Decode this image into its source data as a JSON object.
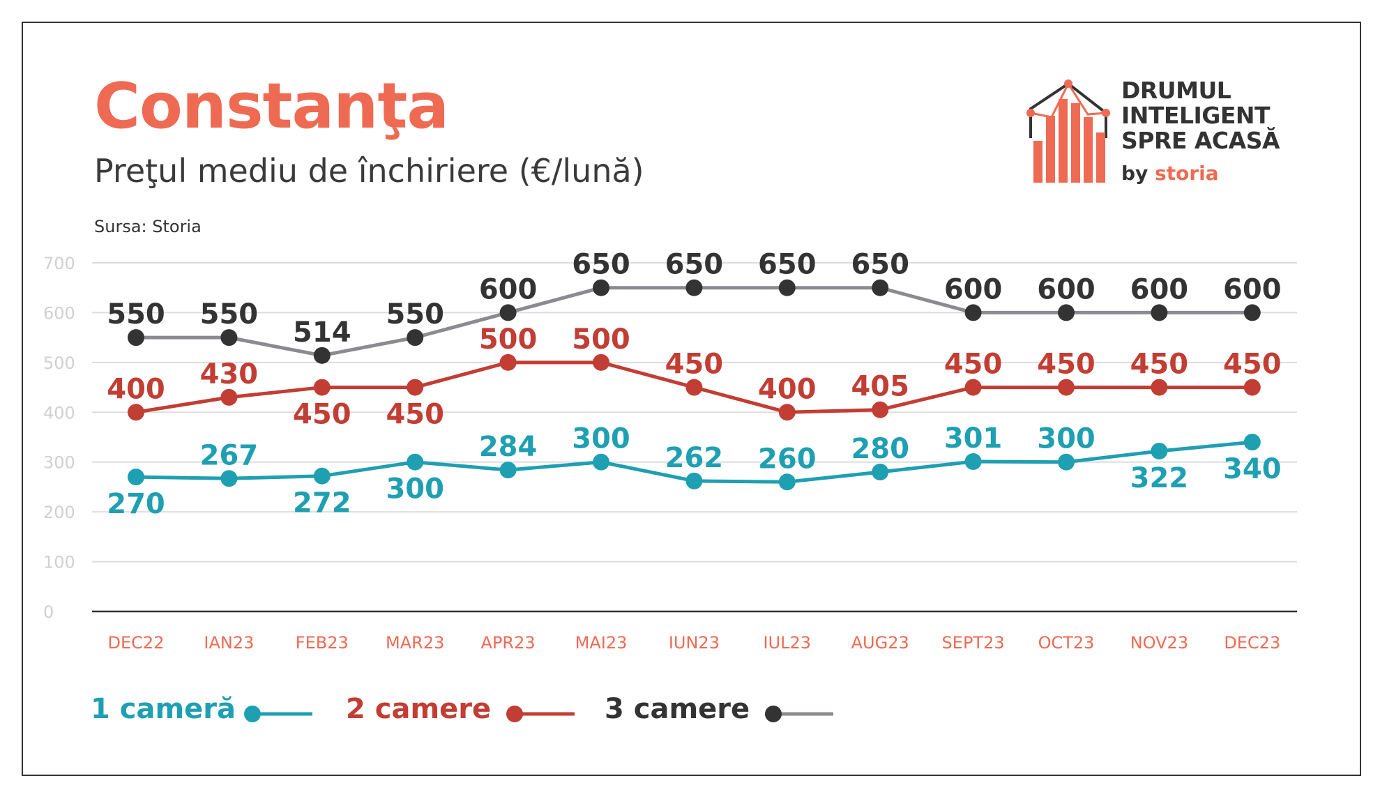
{
  "header": {
    "title": "Constanţa",
    "subtitle": "Preţul mediu de închiriere (€/lună)",
    "source": "Sursa: Storia"
  },
  "logo": {
    "line1": "DRUMUL",
    "line2": "INTELIGENT",
    "line3": "SPRE ACASĂ",
    "by": "by",
    "brand": "storia"
  },
  "colors": {
    "title": "#ef6a53",
    "axis_labels": "#ef6a53",
    "grid": "#dddddd",
    "tick": "#d0d0d0",
    "one_room": "#1e9fb2",
    "two_rooms": "#c23d33",
    "three_rooms_marker": "#333333",
    "three_rooms_line": "#8c8a90"
  },
  "chart_data": {
    "type": "line",
    "title": "Constanţa",
    "subtitle": "Preţul mediu de închiriere (€/lună)",
    "xlabel": "",
    "ylabel": "",
    "ylim": [
      0,
      700
    ],
    "yticks": [
      "0",
      "100",
      "200",
      "300",
      "400",
      "500",
      "600",
      "700"
    ],
    "grid": true,
    "legend_position": "bottom-left",
    "categories": [
      "DEC22",
      "IAN23",
      "FEB23",
      "MAR23",
      "APR23",
      "MAI23",
      "IUN23",
      "IUL23",
      "AUG23",
      "SEPT23",
      "OCT23",
      "NOV23",
      "DEC23"
    ],
    "series": [
      {
        "name": "1 cameră",
        "values": [
          270,
          267,
          272,
          300,
          284,
          300,
          262,
          260,
          280,
          301,
          300,
          322,
          340
        ],
        "label_position": [
          "below",
          "above",
          "below",
          "below",
          "above",
          "above",
          "above",
          "above",
          "above",
          "above",
          "above",
          "below",
          "below"
        ]
      },
      {
        "name": "2 camere",
        "values": [
          400,
          430,
          450,
          450,
          500,
          500,
          450,
          400,
          405,
          450,
          450,
          450,
          450
        ],
        "label_position": [
          "above",
          "above",
          "below",
          "below",
          "above",
          "above",
          "above",
          "above",
          "above",
          "above",
          "above",
          "above",
          "above"
        ]
      },
      {
        "name": "3 camere",
        "values": [
          550,
          550,
          514,
          550,
          600,
          650,
          650,
          650,
          650,
          600,
          600,
          600,
          600
        ],
        "label_position": [
          "above",
          "above",
          "above",
          "above",
          "above",
          "above",
          "above",
          "above",
          "above",
          "above",
          "above",
          "above",
          "above"
        ]
      }
    ]
  }
}
